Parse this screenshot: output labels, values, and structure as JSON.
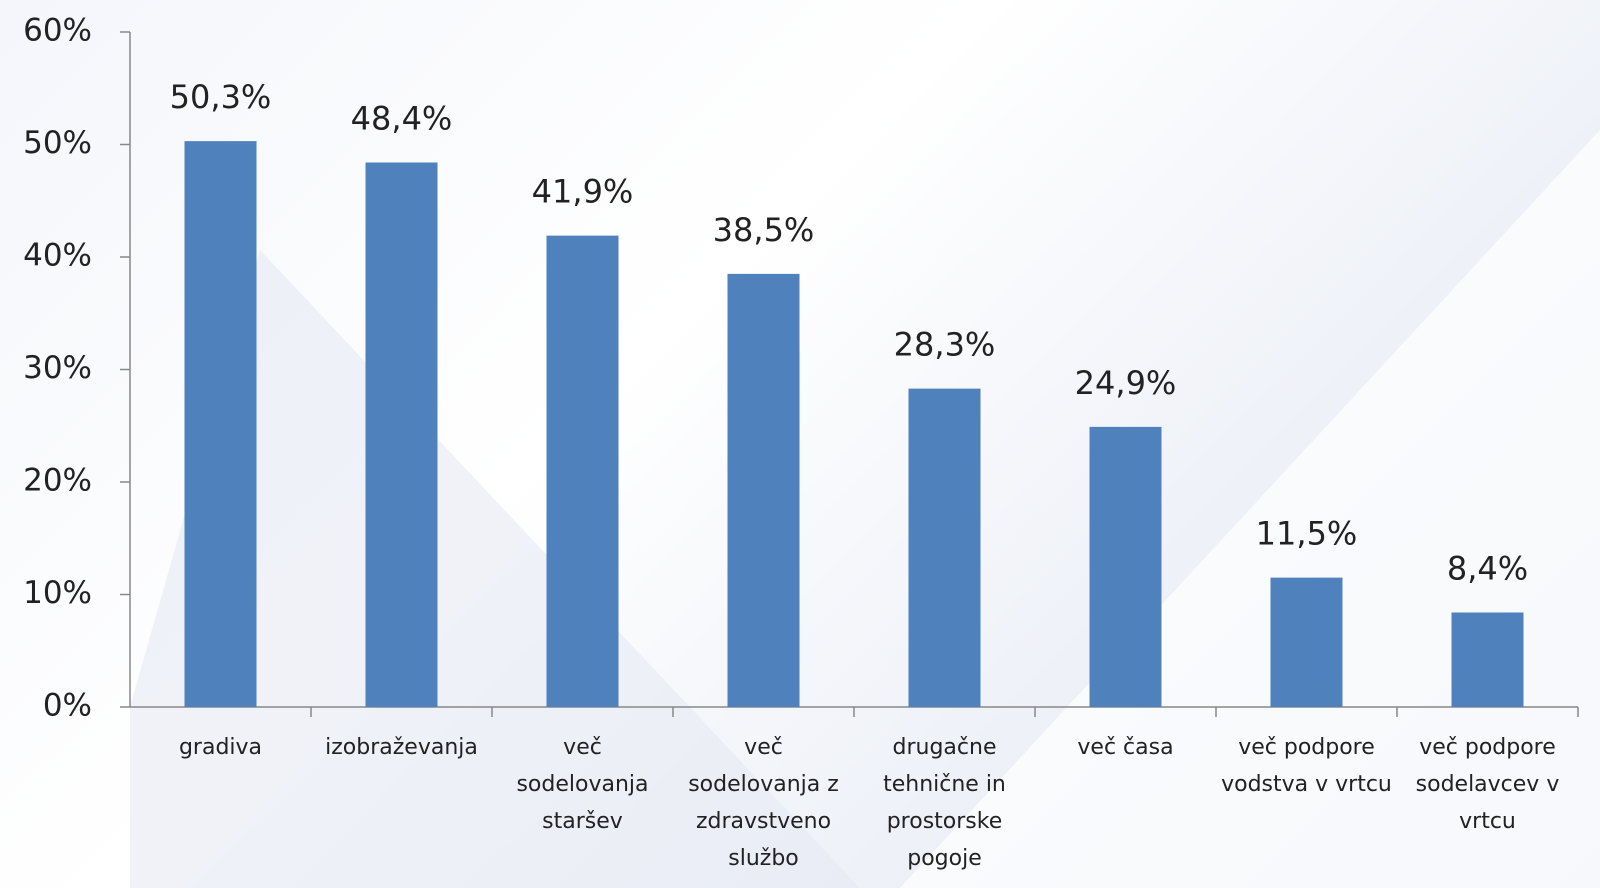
{
  "chart_data": {
    "type": "bar",
    "categories": [
      "gradiva",
      "izobraževanja",
      "več sodelovanja staršev",
      "več sodelovanja z zdravstveno službo",
      "drugačne tehnične in prostorske pogoje",
      "več časa",
      "več podpore vodstva v vrtcu",
      "več podpore sodelavcev v vrtcu"
    ],
    "values": [
      50.3,
      48.4,
      41.9,
      38.5,
      28.3,
      24.9,
      11.5,
      8.4
    ],
    "value_labels": [
      "50,3%",
      "48,4%",
      "41,9%",
      "38,5%",
      "28,3%",
      "24,9%",
      "11,5%",
      "8,4%"
    ],
    "color": "#4f81bd",
    "ylim": [
      0,
      60
    ],
    "yticks": [
      {
        "value": 0,
        "label": "0%"
      },
      {
        "value": 10,
        "label": "10%"
      },
      {
        "value": 20,
        "label": "20%"
      },
      {
        "value": 30,
        "label": "30%"
      },
      {
        "value": 40,
        "label": "40%"
      },
      {
        "value": 50,
        "label": "50%"
      },
      {
        "value": 60,
        "label": "60%"
      }
    ],
    "grid": false
  }
}
